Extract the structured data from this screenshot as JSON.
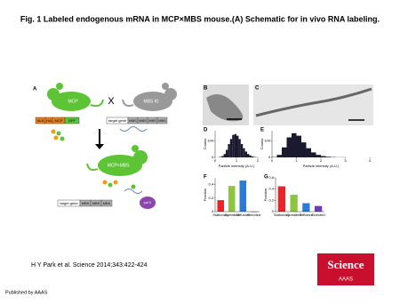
{
  "title": "Fig. 1 Labeled endogenous mRNA in MCP×MBS mouse.(A) Schematic for in vivo RNA labeling.",
  "figure": {
    "panel_a": {
      "label": "A",
      "mouse_left": "MCP",
      "cross": "X",
      "mouse_right": "MBS KI",
      "mouse_bottom": "MCP×MBS",
      "construct_left": [
        "NLS",
        "HA",
        "MCP",
        "GFP"
      ],
      "construct_right": [
        "target gene",
        "MBS",
        "MBS",
        "MBS",
        "MBS"
      ],
      "construct_bottom": [
        "target gene",
        "MBS",
        "MBS",
        "MBS"
      ],
      "polymerase": "pol II"
    },
    "panel_b": {
      "label": "B"
    },
    "panel_c": {
      "label": "C"
    },
    "charts": [
      {
        "type": "histogram",
        "label": "D",
        "x_label": "Particle intensity (A.U.)",
        "y_label": "Counts",
        "bins": [
          0,
          0.1,
          0.2,
          0.3,
          0.4,
          0.5,
          0.6,
          0.7,
          0.8,
          0.9,
          1.0,
          1.1,
          1.2,
          1.3,
          1.4,
          1.5,
          1.6,
          1.7,
          1.8,
          1.9,
          2.0
        ],
        "values": [
          0,
          1,
          3,
          8,
          20,
          45,
          80,
          110,
          135,
          140,
          130,
          110,
          80,
          55,
          35,
          20,
          12,
          6,
          3,
          1
        ],
        "color": "#1a1a2e",
        "xlim": [
          0,
          2
        ],
        "xticks": [
          0,
          1,
          2
        ],
        "ylim": [
          0,
          160
        ],
        "yticks": [
          0,
          100
        ]
      },
      {
        "type": "histogram",
        "label": "E",
        "x_label": "Particle intensity (A.U.)",
        "y_label": "Counts",
        "bins": [
          0,
          0.2,
          0.4,
          0.6,
          0.8,
          1.0,
          1.2,
          1.4,
          1.6,
          1.8,
          2.0,
          2.2,
          2.4,
          2.6,
          2.8,
          3.0,
          3.2,
          3.4,
          3.6,
          3.8,
          4.0
        ],
        "values": [
          2,
          15,
          60,
          120,
          145,
          130,
          90,
          55,
          30,
          15,
          8,
          4,
          2,
          1,
          1,
          0,
          0,
          0,
          0,
          0
        ],
        "color": "#1a1a2e",
        "xlim": [
          0,
          4
        ],
        "xticks": [
          0,
          1,
          2,
          3,
          4
        ],
        "ylim": [
          0,
          160
        ],
        "yticks": [
          0,
          100
        ]
      },
      {
        "type": "bar",
        "label": "F",
        "y_label": "Fraction",
        "categories": [
          "Stationary",
          "Corralled",
          "Diffusive",
          "Directed"
        ],
        "values": [
          0.17,
          0.38,
          0.46,
          0
        ],
        "colors": [
          "#e8262a",
          "#8cc63f",
          "#2b7bd6",
          "#6a3fb5"
        ],
        "ylim": [
          0,
          0.5
        ],
        "yticks": [
          0,
          0.2,
          0.4
        ]
      },
      {
        "type": "bar",
        "label": "G",
        "y_label": "Fraction",
        "categories": [
          "Stationary",
          "Corralled",
          "Diffusive",
          "Directed"
        ],
        "values": [
          0.45,
          0.3,
          0.15,
          0.1
        ],
        "colors": [
          "#e8262a",
          "#8cc63f",
          "#2b7bd6",
          "#6a3fb5"
        ],
        "ylim": [
          0,
          0.6
        ],
        "yticks": [
          0,
          0.2,
          0.4,
          0.6
        ]
      }
    ]
  },
  "citation": "H Y Park et al. Science 2014;343:422-424",
  "logo": {
    "name": "Science",
    "org": "AAAS"
  },
  "footer": "Published by AAAS"
}
